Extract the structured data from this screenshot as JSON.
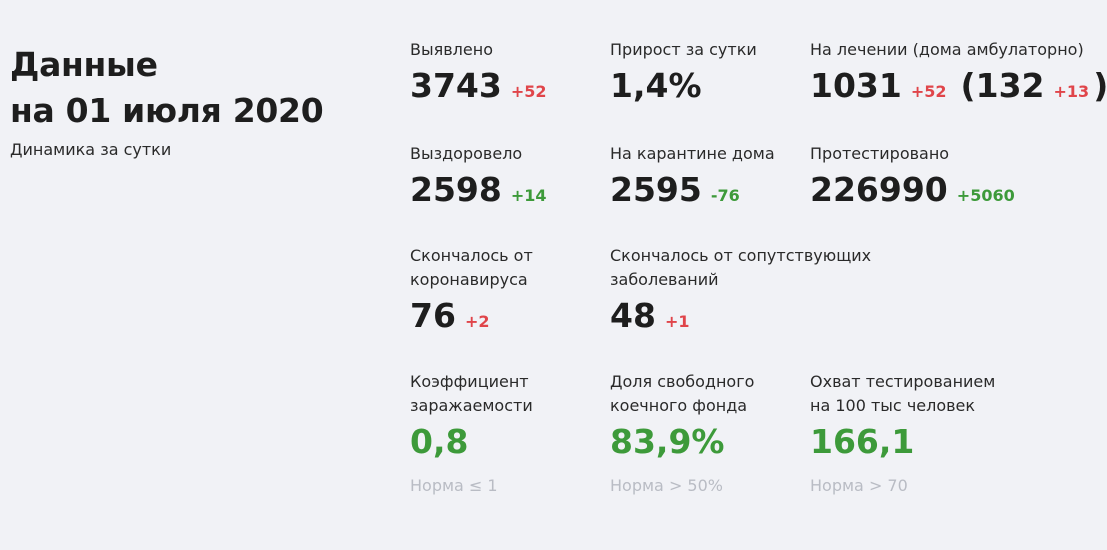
{
  "header": {
    "title_line1": "Данные",
    "title_line2": "на 01 июля 2020",
    "subtitle": "Динамика за сутки"
  },
  "stats": {
    "detected": {
      "label": "Выявлено",
      "value": "3743",
      "delta": "+52"
    },
    "daily_growth": {
      "label": "Прирост за сутки",
      "value": "1,4%"
    },
    "in_treatment": {
      "label": "На лечении (дома амбулаторно)",
      "value": "1031",
      "delta": "+52",
      "open_paren": "(",
      "home_value": "132",
      "home_delta": "+13",
      "close_paren": ")"
    },
    "recovered": {
      "label": "Выздоровело",
      "value": "2598",
      "delta": "+14"
    },
    "home_quarantine": {
      "label": "На карантине дома",
      "value": "2595",
      "delta": "-76"
    },
    "tested": {
      "label": "Протестировано",
      "value": "226990",
      "delta": "+5060"
    },
    "died_covid": {
      "label_line1": "Скончалось от",
      "label_line2": "коронавируса",
      "value": "76",
      "delta": "+2"
    },
    "died_comorbid": {
      "label_line1": "Скончалось от сопутствующих",
      "label_line2": "заболеваний",
      "value": "48",
      "delta": "+1"
    },
    "infection_rate": {
      "label_line1": "Коэффициент",
      "label_line2": "заражаемости",
      "value": "0,8",
      "norm": "Норма ≤ 1"
    },
    "free_beds": {
      "label_line1": "Доля свободного",
      "label_line2": "коечного фонда",
      "value": "83,9%",
      "norm": "Норма > 50%"
    },
    "testing_coverage": {
      "label_line1": "Охват тестированием",
      "label_line2": "на 100 тыс человек",
      "value": "166,1",
      "norm": "Норма > 70"
    }
  },
  "colors": {
    "background": "#f1f2f6",
    "text": "#1e1e1e",
    "increase_red": "#e0454a",
    "good_green": "#3d9a3a",
    "norm_gray": "#b9bcc4"
  }
}
